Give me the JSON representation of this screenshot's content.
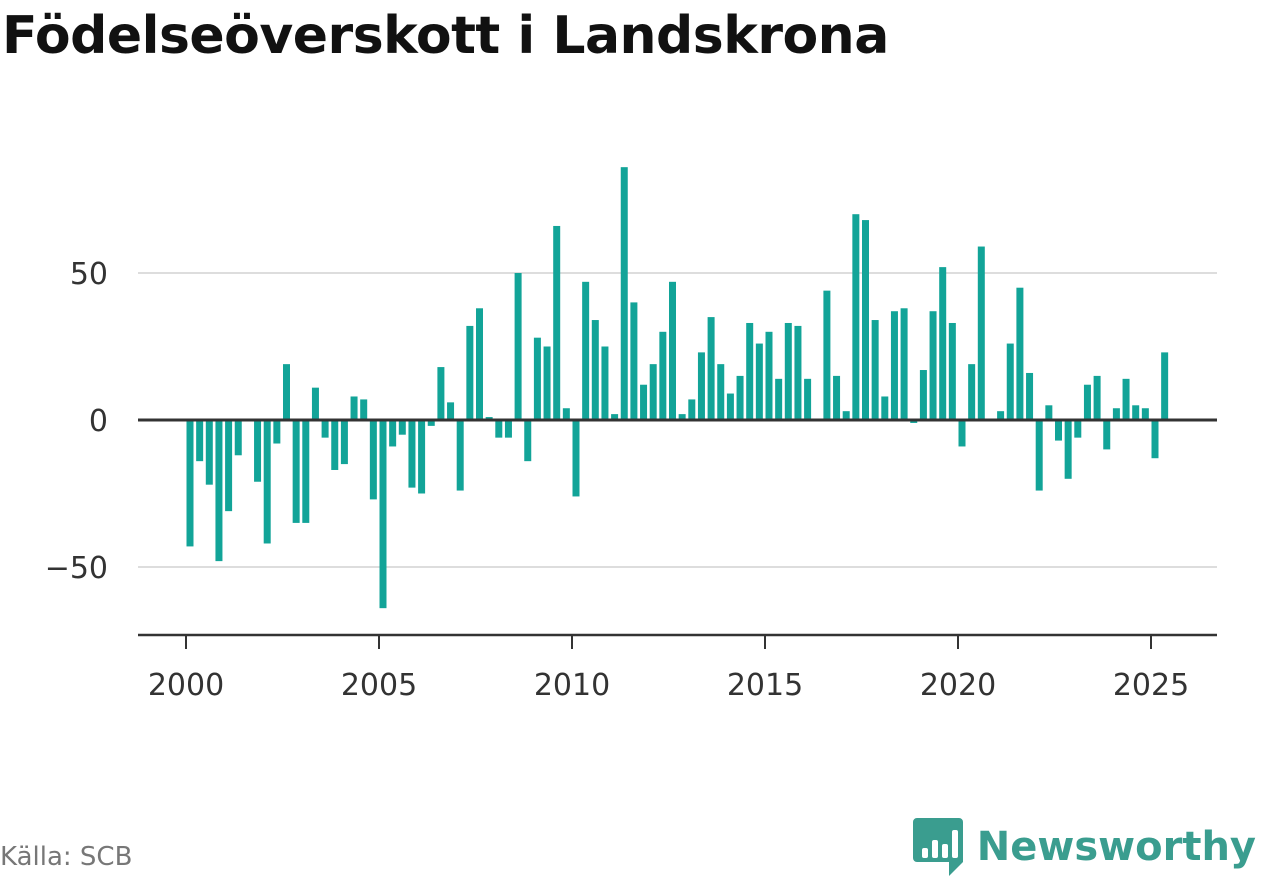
{
  "title": "Födelseöverskott i Landskrona",
  "source": "Källa: SCB",
  "brand": {
    "name": "Newsworthy",
    "icon": "newsworthy-logo-icon",
    "color": "#3a9d8f"
  },
  "colors": {
    "bar": "#12a498",
    "zero_line": "#333333",
    "grid": "#dddddd",
    "axis": "#333333",
    "text": "#333333"
  },
  "chart_data": {
    "type": "bar",
    "title": "Födelseöverskott i Landskrona",
    "xlabel": "",
    "ylabel": "",
    "x_ticks": [
      "2000",
      "2005",
      "2010",
      "2015",
      "2020",
      "2025"
    ],
    "y_ticks": [
      "50",
      "0",
      "−50"
    ],
    "y_tick_values": [
      50,
      0,
      -50
    ],
    "ylim": [
      -73,
      90
    ],
    "grid": true,
    "legend": "none",
    "series": [
      {
        "quarters": [
          "2000Q1",
          "2000Q2",
          "2000Q3",
          "2000Q4",
          "2001Q1",
          "2001Q2",
          "2001Q3",
          "2001Q4",
          "2002Q1",
          "2002Q2",
          "2002Q3",
          "2002Q4",
          "2003Q1",
          "2003Q2",
          "2003Q3",
          "2003Q4",
          "2004Q1",
          "2004Q2",
          "2004Q3",
          "2004Q4",
          "2005Q1",
          "2005Q2",
          "2005Q3",
          "2005Q4",
          "2006Q1",
          "2006Q2",
          "2006Q3",
          "2006Q4",
          "2007Q1",
          "2007Q2",
          "2007Q3",
          "2007Q4",
          "2008Q1",
          "2008Q2",
          "2008Q3",
          "2008Q4",
          "2009Q1",
          "2009Q2",
          "2009Q3",
          "2009Q4",
          "2010Q1",
          "2010Q2",
          "2010Q3",
          "2010Q4",
          "2011Q1",
          "2011Q2",
          "2011Q3",
          "2011Q4",
          "2012Q1",
          "2012Q2",
          "2012Q3",
          "2012Q4",
          "2013Q1",
          "2013Q2",
          "2013Q3",
          "2013Q4",
          "2014Q1",
          "2014Q2",
          "2014Q3",
          "2014Q4",
          "2015Q1",
          "2015Q2",
          "2015Q3",
          "2015Q4",
          "2016Q1",
          "2016Q2",
          "2016Q3",
          "2016Q4",
          "2017Q1",
          "2017Q2",
          "2017Q3",
          "2017Q4",
          "2018Q1",
          "2018Q2",
          "2018Q3",
          "2018Q4",
          "2019Q1",
          "2019Q2",
          "2019Q3",
          "2019Q4",
          "2020Q1",
          "2020Q2",
          "2020Q3",
          "2020Q4",
          "2021Q1",
          "2021Q2",
          "2021Q3",
          "2021Q4",
          "2022Q1",
          "2022Q2",
          "2022Q3",
          "2022Q4",
          "2023Q1",
          "2023Q2",
          "2023Q3",
          "2023Q4",
          "2024Q1",
          "2024Q2",
          "2024Q3",
          "2024Q4",
          "2025Q1",
          "2025Q2"
        ],
        "values": [
          -43,
          -14,
          -22,
          -48,
          -31,
          -12,
          0,
          -21,
          -42,
          -8,
          19,
          -35,
          -35,
          11,
          -6,
          -17,
          -15,
          8,
          7,
          -27,
          -64,
          -9,
          -5,
          -23,
          -25,
          -2,
          18,
          6,
          -24,
          32,
          38,
          1,
          -6,
          -6,
          50,
          -14,
          28,
          25,
          66,
          4,
          -26,
          47,
          34,
          25,
          2,
          86,
          40,
          12,
          19,
          30,
          47,
          2,
          7,
          23,
          35,
          19,
          9,
          15,
          33,
          26,
          30,
          14,
          33,
          32,
          14,
          0,
          44,
          15,
          3,
          70,
          68,
          34,
          8,
          37,
          38,
          -1,
          17,
          37,
          52,
          33,
          -9,
          19,
          59,
          0,
          3,
          26,
          45,
          16,
          -24,
          5,
          -7,
          -20,
          -6,
          12,
          15,
          -10,
          4,
          14,
          5,
          4,
          -13,
          23
        ]
      }
    ]
  }
}
